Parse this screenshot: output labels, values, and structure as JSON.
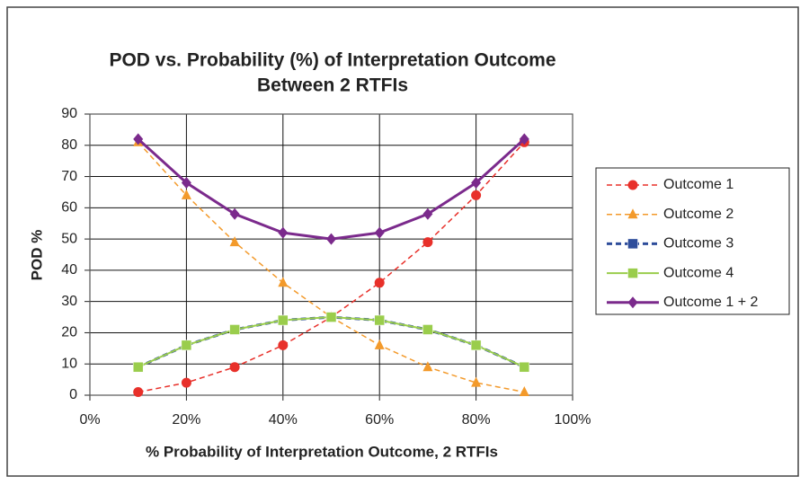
{
  "chart_data": {
    "type": "line",
    "title": [
      "POD vs. Probability (%) of Interpretation Outcome",
      "Between 2 RTFIs"
    ],
    "x_label": "% Probability of Interpretation Outcome, 2 RTFIs",
    "y_label": "POD %",
    "x": [
      10,
      20,
      30,
      40,
      50,
      60,
      70,
      80,
      90
    ],
    "series": [
      {
        "name": "Outcome 1",
        "color": "#e8302a",
        "dashed": true,
        "width": 1.5,
        "marker": "circle",
        "values": [
          1,
          4,
          9,
          16,
          25,
          36,
          49,
          64,
          81
        ]
      },
      {
        "name": "Outcome 2",
        "color": "#f39a2b",
        "dashed": true,
        "width": 1.5,
        "marker": "triangle",
        "values": [
          81,
          64,
          49,
          36,
          25,
          16,
          9,
          4,
          1
        ]
      },
      {
        "name": "Outcome 3",
        "color": "#2e4d9b",
        "dashed": true,
        "width": 3,
        "marker": "square",
        "values": [
          9,
          16,
          21,
          24,
          25,
          24,
          21,
          16,
          9
        ]
      },
      {
        "name": "Outcome 4",
        "color": "#9acd4c",
        "dashed": false,
        "width": 2,
        "marker": "square",
        "values": [
          9,
          16,
          21,
          24,
          25,
          24,
          21,
          16,
          9
        ]
      },
      {
        "name": "Outcome 1 + 2",
        "color": "#7b2a8c",
        "dashed": false,
        "width": 3,
        "marker": "diamond",
        "values": [
          82,
          68,
          58,
          52,
          50,
          52,
          58,
          68,
          82
        ]
      }
    ],
    "xlim": [
      0,
      100
    ],
    "xticks": [
      {
        "value": 0,
        "label": "0%"
      },
      {
        "value": 20,
        "label": "20%"
      },
      {
        "value": 40,
        "label": "40%"
      },
      {
        "value": 60,
        "label": "60%"
      },
      {
        "value": 80,
        "label": "80%"
      },
      {
        "value": 100,
        "label": "100%"
      }
    ],
    "ylim": [
      0,
      90
    ],
    "yticks": [
      0,
      10,
      20,
      30,
      40,
      50,
      60,
      70,
      80,
      90
    ],
    "grid": true,
    "legend": "right"
  }
}
